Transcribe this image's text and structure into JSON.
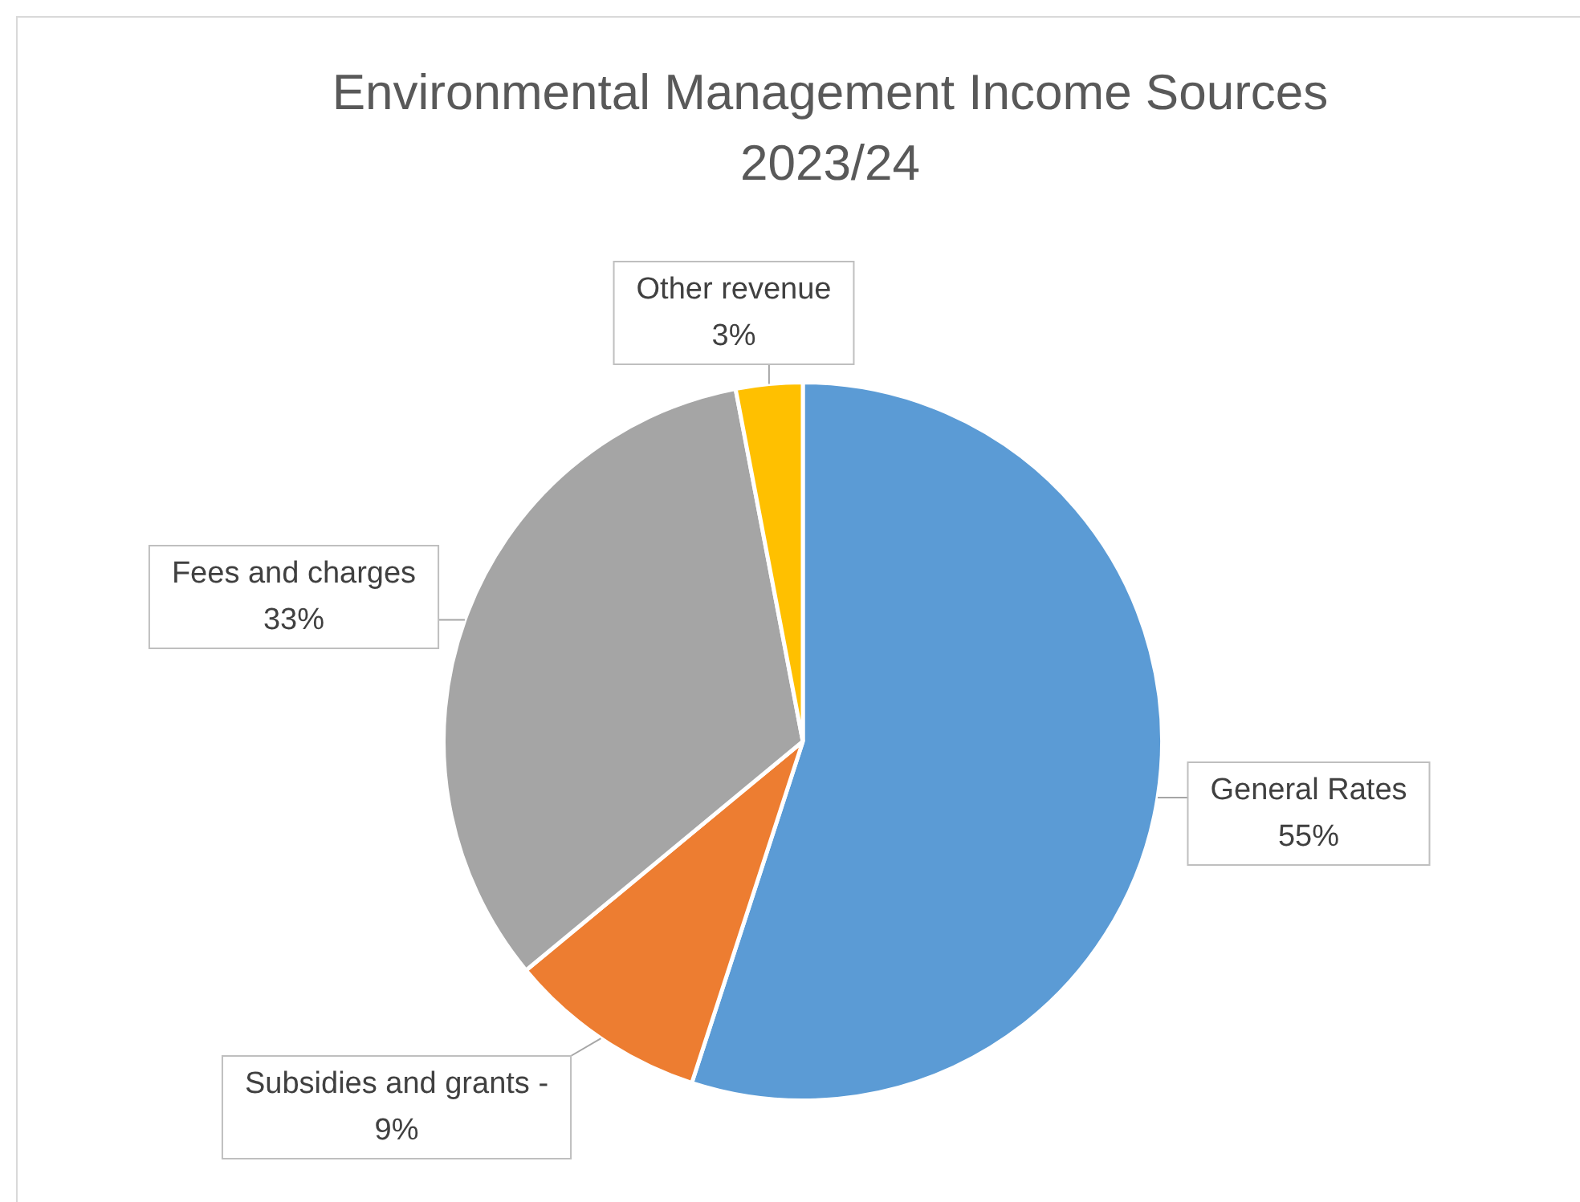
{
  "chart_data": {
    "type": "pie",
    "title": "Environmental Management Income Sources 2023/24",
    "categories": [
      "General Rates",
      "Subsidies and grants -",
      "Fees and charges",
      "Other revenue"
    ],
    "values": [
      55,
      9,
      33,
      3
    ],
    "colors": [
      "#5b9bd5",
      "#ed7d31",
      "#a5a5a5",
      "#ffc000"
    ],
    "value_labels": [
      "55%",
      "9%",
      "33%",
      "3%"
    ]
  }
}
